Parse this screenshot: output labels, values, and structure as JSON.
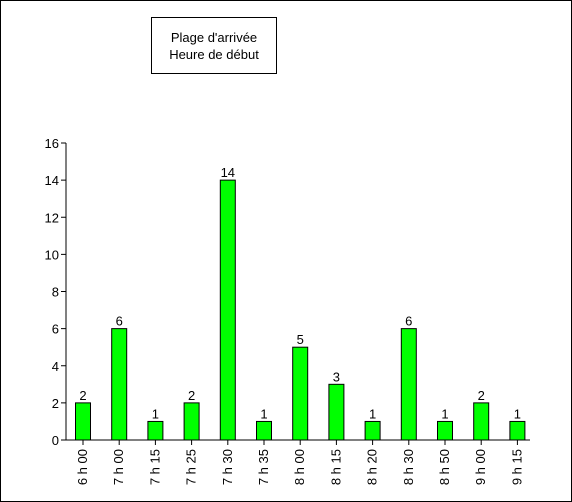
{
  "legend": {
    "line1": "Plage d'arrivée",
    "line2": "Heure de début"
  },
  "chart_data": {
    "type": "bar",
    "title": "",
    "xlabel": "",
    "ylabel": "",
    "categories": [
      "6 h 00",
      "7 h 00",
      "7 h 15",
      "7 h 25",
      "7 h 30",
      "7 h 35",
      "8 h 00",
      "8 h 15",
      "8 h 20",
      "8 h 30",
      "8 h 50",
      "9 h 00",
      "9 h 15"
    ],
    "values": [
      2,
      6,
      1,
      2,
      14,
      1,
      5,
      3,
      1,
      6,
      1,
      2,
      1
    ],
    "ylim": [
      0,
      16
    ],
    "yticks": [
      0,
      2,
      4,
      6,
      8,
      10,
      12,
      14,
      16
    ],
    "grid": false,
    "legend_placement": "top-left",
    "bar_color": "#00FF00",
    "bar_edge_color": "#000000"
  }
}
